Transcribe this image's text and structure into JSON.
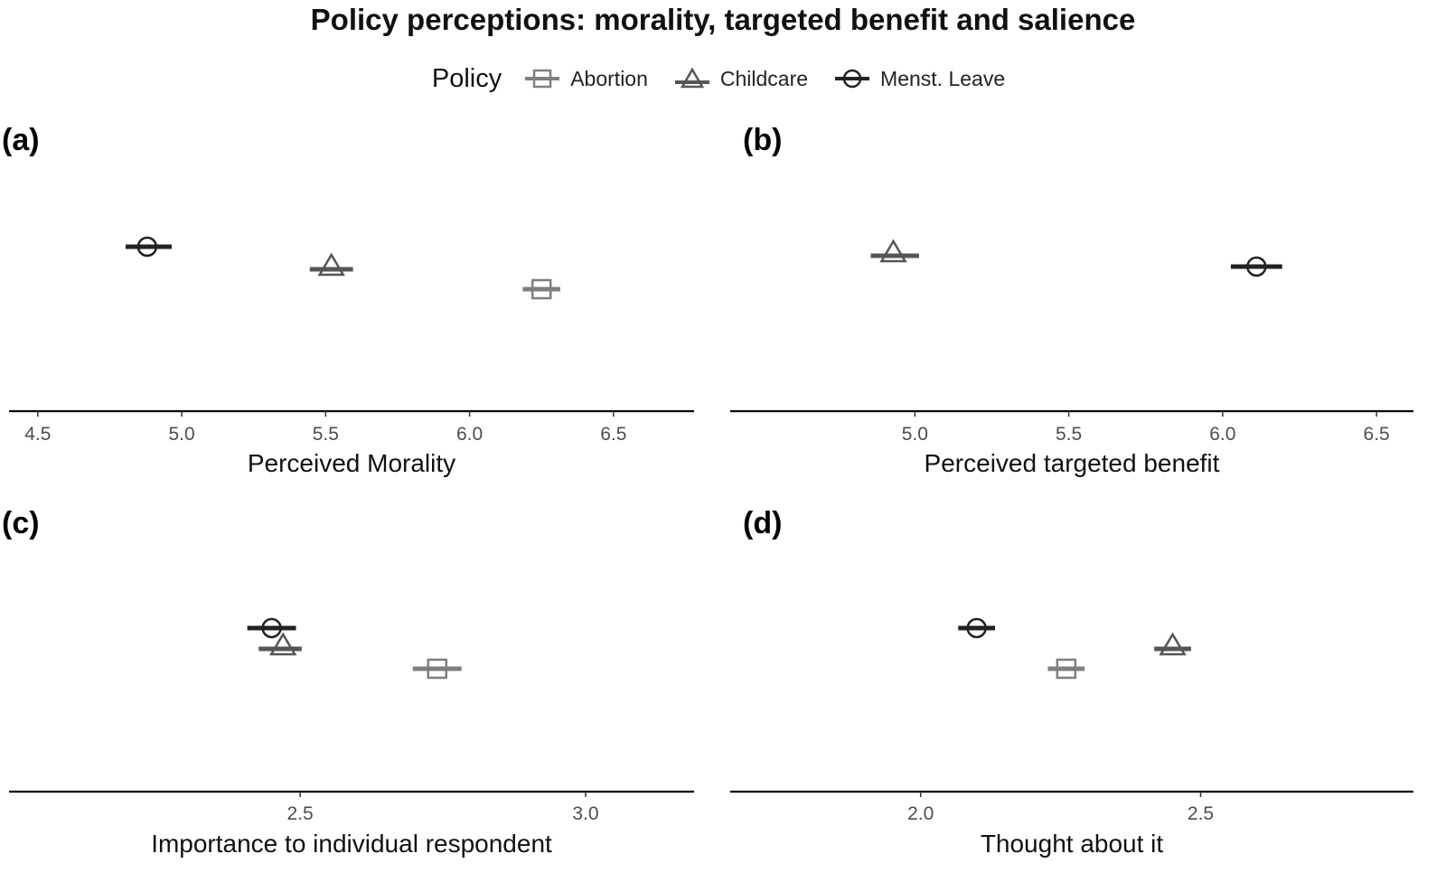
{
  "figure": {
    "title": "Policy perceptions: morality, targeted benefit and salience"
  },
  "legend": {
    "title": "Policy",
    "items": [
      {
        "label": "Abortion",
        "shape": "square",
        "color": "#7f7f7f"
      },
      {
        "label": "Childcare",
        "shape": "triangle",
        "color": "#555555"
      },
      {
        "label": "Menst. Leave",
        "shape": "circle",
        "color": "#222222"
      }
    ]
  },
  "chart_data": [
    {
      "type": "scatter",
      "panel_label": "(a)",
      "title": "",
      "xlabel": "Perceived Morality",
      "ylabel": "",
      "xlim": [
        4.4,
        6.78
      ],
      "x_ticks": [
        4.5,
        5.0,
        5.5,
        6.0,
        6.5
      ],
      "x_tick_labels": [
        "4.5",
        "5.0",
        "5.5",
        "6.0",
        "6.5"
      ],
      "series": [
        {
          "name": "Abortion",
          "x": 6.25,
          "ci": [
            6.21,
            6.29
          ]
        },
        {
          "name": "Childcare",
          "x": 5.52,
          "ci": [
            5.47,
            5.57
          ]
        },
        {
          "name": "Menst. Leave",
          "x": 4.88,
          "ci": [
            4.83,
            4.94
          ]
        }
      ]
    },
    {
      "type": "scatter",
      "panel_label": "(b)",
      "title": "",
      "xlabel": "Perceived targeted benefit",
      "ylabel": "",
      "xlim": [
        4.4,
        6.62
      ],
      "x_ticks": [
        5.0,
        5.5,
        6.0,
        6.5
      ],
      "x_tick_labels": [
        "5.0",
        "5.5",
        "6.0",
        "6.5"
      ],
      "series": [
        {
          "name": "Childcare",
          "x": 4.93,
          "ci": [
            4.88,
            4.99
          ]
        },
        {
          "name": "Menst. Leave",
          "x": 6.11,
          "ci": [
            6.05,
            6.17
          ]
        }
      ]
    },
    {
      "type": "scatter",
      "panel_label": "(c)",
      "title": "",
      "xlabel": "Importance to individual respondent",
      "ylabel": "",
      "xlim": [
        1.99,
        3.19
      ],
      "x_ticks": [
        2.5,
        3.0
      ],
      "x_tick_labels": [
        "2.5",
        "3.0"
      ],
      "series": [
        {
          "name": "Abortion",
          "x": 2.74,
          "ci": [
            2.71,
            2.77
          ]
        },
        {
          "name": "Childcare",
          "x": 2.47,
          "ci": [
            2.44,
            2.49
          ]
        },
        {
          "name": "Menst. Leave",
          "x": 2.45,
          "ci": [
            2.42,
            2.48
          ]
        }
      ]
    },
    {
      "type": "scatter",
      "panel_label": "(d)",
      "title": "",
      "xlabel": "Thought about it",
      "ylabel": "",
      "xlim": [
        1.66,
        2.88
      ],
      "x_ticks": [
        2.0,
        2.5
      ],
      "x_tick_labels": [
        "2.0",
        "2.5"
      ],
      "series": [
        {
          "name": "Abortion",
          "x": 2.26,
          "ci": [
            2.24,
            2.28
          ]
        },
        {
          "name": "Childcare",
          "x": 2.45,
          "ci": [
            2.43,
            2.47
          ]
        },
        {
          "name": "Menst. Leave",
          "x": 2.1,
          "ci": [
            2.08,
            2.12
          ]
        }
      ]
    }
  ]
}
